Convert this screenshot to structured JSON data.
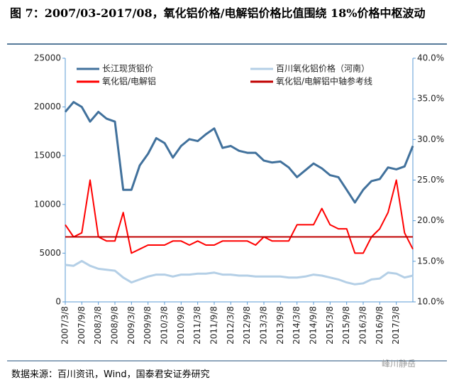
{
  "chart_data": {
    "type": "line",
    "title": "图 7：2007/03-2017/08，氧化铝价格/电解铝价格比值围绕 18%价格中枢波动",
    "source": "数据来源：百川资讯，Wind，国泰君安证券研究",
    "watermark": "峰川静岳",
    "categories": [
      "2007/3/8",
      null,
      "2007/9/8",
      null,
      "2008/3/8",
      null,
      "2008/9/8",
      null,
      "2009/3/8",
      null,
      "2009/9/8",
      null,
      "2010/3/8",
      null,
      "2010/9/8",
      null,
      "2011/3/8",
      null,
      "2011/9/8",
      null,
      "2012/3/8",
      null,
      "2012/9/8",
      null,
      "2013/3/8",
      null,
      "2013/9/8",
      null,
      "2014/3/8",
      null,
      "2014/9/8",
      null,
      "2015/3/8",
      null,
      "2015/9/8",
      null,
      "2016/3/8",
      null,
      "2016/9/8",
      null,
      "2017/3/8",
      null,
      null
    ],
    "ylim": [
      0,
      25000
    ],
    "yticks": [
      0,
      5000,
      10000,
      15000,
      20000,
      25000
    ],
    "y2lim": [
      10,
      40
    ],
    "y2ticks": [
      {
        "value": 10,
        "label": "10.0%"
      },
      {
        "value": 15,
        "label": "15.0%"
      },
      {
        "value": 20,
        "label": "20.0%"
      },
      {
        "value": 25,
        "label": "25.0%"
      },
      {
        "value": 30,
        "label": "30.0%"
      },
      {
        "value": 35,
        "label": "35.0%"
      },
      {
        "value": 40,
        "label": "40.0%"
      }
    ],
    "series": [
      {
        "name": "长江现货铝价",
        "color": "#41719c",
        "width": 3,
        "values": [
          19500,
          20500,
          20000,
          18500,
          19500,
          18800,
          18500,
          11500,
          11500,
          14000,
          15200,
          16800,
          16300,
          14800,
          16000,
          16700,
          16500,
          17200,
          17800,
          15800,
          16000,
          15500,
          15300,
          15300,
          14500,
          14300,
          14400,
          13800,
          12800,
          13500,
          14200,
          13700,
          13000,
          12800,
          11500,
          10200,
          11500,
          12400,
          12600,
          13800,
          13600,
          13900,
          16000
        ]
      },
      {
        "name": "百川氧化铝价格（河南）",
        "color": "#b4cfe6",
        "width": 3,
        "values": [
          3800,
          3700,
          4200,
          3700,
          3400,
          3300,
          3200,
          2500,
          2000,
          2300,
          2600,
          2800,
          2800,
          2600,
          2800,
          2800,
          2900,
          2900,
          3000,
          2800,
          2800,
          2700,
          2700,
          2600,
          2600,
          2600,
          2600,
          2500,
          2500,
          2600,
          2800,
          2700,
          2500,
          2300,
          2000,
          1800,
          1900,
          2300,
          2400,
          3000,
          2900,
          2500,
          2700
        ]
      },
      {
        "name": "氧化铝/电解铝",
        "color": "#ff0000",
        "width": 2,
        "axis": "y2",
        "values": [
          19.5,
          18,
          18.5,
          25,
          18,
          17.5,
          17.5,
          21,
          16,
          16.5,
          17,
          17,
          17,
          17.5,
          17.5,
          17,
          17.5,
          17,
          17,
          17.5,
          17.5,
          17.5,
          17.5,
          17,
          18,
          17.5,
          17.5,
          17.5,
          19.5,
          19.5,
          19.5,
          21.5,
          19.5,
          19,
          19,
          16,
          16,
          18,
          19,
          21,
          25,
          18.5,
          16.5
        ]
      },
      {
        "name": "氧化铝/电解铝中轴参考线",
        "color": "#c00000",
        "width": 2,
        "axis": "y2",
        "values": [
          18,
          18,
          18,
          18,
          18,
          18,
          18,
          18,
          18,
          18,
          18,
          18,
          18,
          18,
          18,
          18,
          18,
          18,
          18,
          18,
          18,
          18,
          18,
          18,
          18,
          18,
          18,
          18,
          18,
          18,
          18,
          18,
          18,
          18,
          18,
          18,
          18,
          18,
          18,
          18,
          18,
          18,
          18
        ]
      }
    ]
  }
}
